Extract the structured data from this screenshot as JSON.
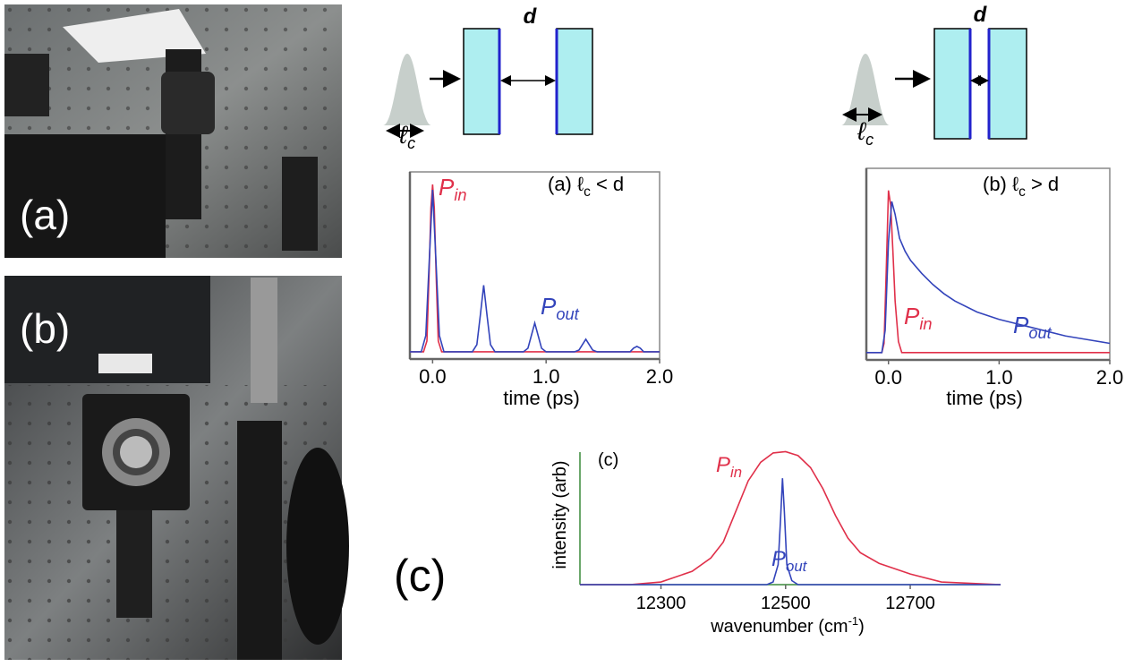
{
  "photos": [
    {
      "label": "(a)"
    },
    {
      "label": "(b)"
    }
  ],
  "panel_label": "(c)",
  "diagrams": [
    {
      "d": "d",
      "lc": [
        "ℓ",
        "c"
      ]
    },
    {
      "d": "d",
      "lc": [
        "ℓ",
        "c"
      ]
    }
  ],
  "chart_data": [
    {
      "type": "line",
      "annotation": [
        "(a) ℓ",
        "c",
        " < d"
      ],
      "xlabel": "time (ps)",
      "xlim": [
        -0.2,
        2.0
      ],
      "ylim": [
        -0.04,
        1.0
      ],
      "xticks": [
        {
          "value": 0,
          "label": "0.0"
        },
        {
          "value": 1,
          "label": "1.0"
        },
        {
          "value": 2,
          "label": "2.0"
        }
      ],
      "series": [
        {
          "name": "P",
          "sub": "in",
          "color": "#e0304a",
          "x": [
            -0.2,
            -0.08,
            -0.05,
            -0.03,
            -0.015,
            0,
            0.015,
            0.03,
            0.05,
            0.08,
            2.0
          ],
          "values": [
            0,
            0,
            0.06,
            0.45,
            0.8,
            0.93,
            0.8,
            0.45,
            0.06,
            0,
            0
          ]
        },
        {
          "name": "P",
          "sub": "out",
          "color": "#3344bb",
          "x": [
            -0.2,
            -0.1,
            -0.06,
            -0.03,
            0,
            0.03,
            0.06,
            0.1,
            0.35,
            0.39,
            0.42,
            0.45,
            0.48,
            0.51,
            0.55,
            0.8,
            0.84,
            0.87,
            0.9,
            0.93,
            0.96,
            1.0,
            1.25,
            1.29,
            1.32,
            1.35,
            1.38,
            1.41,
            1.45,
            1.7,
            1.74,
            1.77,
            1.8,
            1.83,
            1.86,
            1.9,
            2.0
          ],
          "values": [
            0,
            0,
            0.09,
            0.5,
            0.9,
            0.5,
            0.09,
            0,
            0,
            0.04,
            0.2,
            0.37,
            0.2,
            0.04,
            0,
            0,
            0.02,
            0.09,
            0.16,
            0.09,
            0.02,
            0,
            0,
            0.01,
            0.04,
            0.07,
            0.04,
            0.01,
            0,
            0,
            0,
            0.02,
            0.03,
            0.02,
            0,
            0,
            0
          ]
        }
      ]
    },
    {
      "type": "line",
      "annotation": [
        "(b) ℓ",
        "c",
        " > d"
      ],
      "xlabel": "time (ps)",
      "xlim": [
        -0.2,
        2.0
      ],
      "ylim": [
        -0.04,
        1.0
      ],
      "xticks": [
        {
          "value": 0,
          "label": "0.0"
        },
        {
          "value": 1,
          "label": "1.0"
        },
        {
          "value": 2,
          "label": "2.0"
        }
      ],
      "series": [
        {
          "name": "P",
          "sub": "in",
          "color": "#e0304a",
          "x": [
            -0.2,
            -0.06,
            -0.04,
            -0.02,
            0,
            0.02,
            0.04,
            0.06,
            0.09,
            0.12,
            2.0
          ],
          "values": [
            0,
            0,
            0.05,
            0.45,
            0.88,
            0.8,
            0.55,
            0.28,
            0.06,
            0,
            0
          ]
        },
        {
          "name": "P",
          "sub": "out",
          "color": "#3344bb",
          "x": [
            -0.2,
            -0.06,
            -0.03,
            0,
            0.03,
            0.06,
            0.1,
            0.15,
            0.2,
            0.3,
            0.4,
            0.5,
            0.6,
            0.8,
            1.0,
            1.2,
            1.4,
            1.6,
            1.8,
            2.0
          ],
          "values": [
            0,
            0,
            0.12,
            0.6,
            0.82,
            0.75,
            0.62,
            0.55,
            0.5,
            0.43,
            0.37,
            0.32,
            0.28,
            0.22,
            0.18,
            0.15,
            0.12,
            0.09,
            0.07,
            0.05
          ]
        }
      ]
    },
    {
      "type": "line",
      "annotation": [
        "(c)"
      ],
      "xlabel": [
        "wavenumber (cm",
        "-1",
        ")"
      ],
      "ylabel": "intensity (arb)",
      "xlim": [
        12170,
        12845
      ],
      "ylim": [
        0,
        1.05
      ],
      "xticks": [
        12300,
        12500,
        12700
      ],
      "series": [
        {
          "name": "P",
          "sub": "in",
          "color": "#e0304a",
          "x": [
            12170,
            12250,
            12300,
            12350,
            12380,
            12400,
            12420,
            12440,
            12460,
            12480,
            12500,
            12520,
            12540,
            12560,
            12580,
            12600,
            12620,
            12650,
            12700,
            12750,
            12845
          ],
          "values": [
            0,
            0,
            0.02,
            0.1,
            0.2,
            0.32,
            0.55,
            0.78,
            0.92,
            0.99,
            1.0,
            0.97,
            0.88,
            0.72,
            0.52,
            0.35,
            0.24,
            0.16,
            0.08,
            0.02,
            0
          ]
        },
        {
          "name": "P",
          "sub": "out",
          "color": "#3344bb",
          "x": [
            12170,
            12470,
            12480,
            12488,
            12492,
            12495,
            12498,
            12502,
            12510,
            12520,
            12845
          ],
          "values": [
            0,
            0,
            0.02,
            0.15,
            0.5,
            0.8,
            0.55,
            0.15,
            0.03,
            0,
            0
          ]
        }
      ]
    }
  ]
}
